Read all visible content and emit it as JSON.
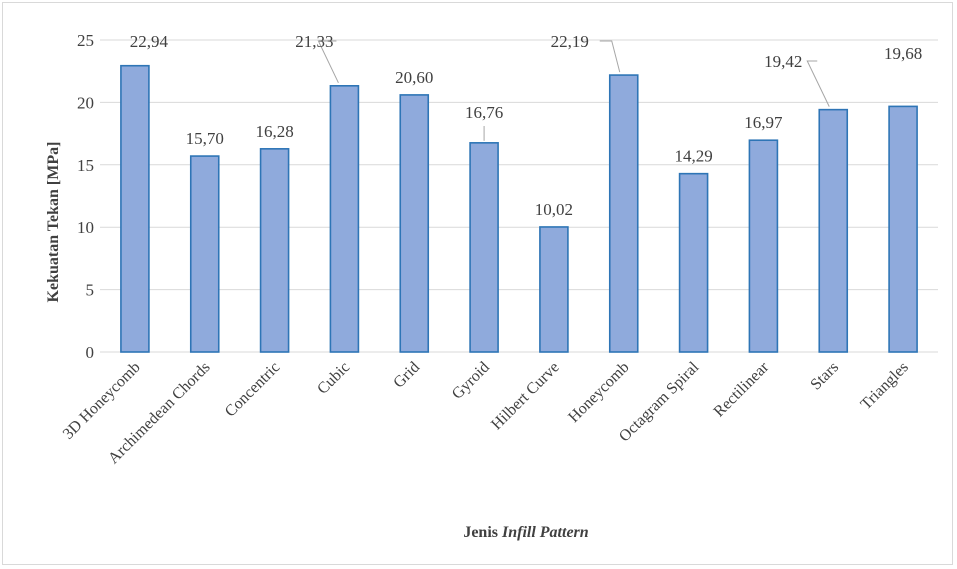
{
  "chart_data": {
    "type": "bar",
    "categories": [
      "3D Honeycomb",
      "Archimedean Chords",
      "Concentric",
      "Cubic",
      "Grid",
      "Gyroid",
      "Hilbert Curve",
      "Honeycomb",
      "Octagram Spiral",
      "Rectilinear",
      "Stars",
      "Triangles"
    ],
    "values": [
      22.94,
      15.7,
      16.28,
      21.33,
      20.6,
      16.76,
      10.02,
      22.19,
      14.29,
      16.97,
      19.42,
      19.68
    ],
    "data_labels": [
      "22,94",
      "15,70",
      "16,28",
      "21,33",
      "20,60",
      "16,76",
      "10,02",
      "22,19",
      "14,29",
      "16,97",
      "19,42",
      "19,68"
    ],
    "ylabel": "Kekuatan Tekan [MPa]",
    "xlabel_prefix": "Jenis ",
    "xlabel_italic": "Infill Pattern",
    "ylim": [
      0,
      25
    ],
    "yticks": [
      0,
      5,
      10,
      15,
      20,
      25
    ],
    "grid": true,
    "legend": "none",
    "colors": {
      "bar_fill": "#8faadc",
      "bar_stroke": "#2e75b6",
      "grid": "#d9d9d9",
      "leader": "#a6a6a6"
    }
  }
}
